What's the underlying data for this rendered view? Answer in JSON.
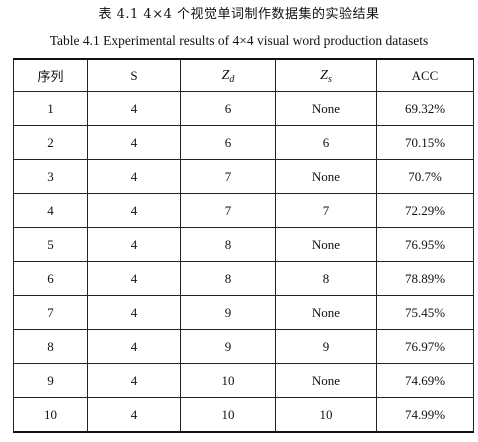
{
  "caption": {
    "cn": "表 4.1 4×4 个视觉单词制作数据集的实验结果",
    "en": "Table 4.1 Experimental results of 4×4 visual word production datasets"
  },
  "table": {
    "headers": {
      "index": "序列",
      "s": "S",
      "zd_base": "Z",
      "zd_sub": "d",
      "zs_base": "Z",
      "zs_sub": "s",
      "acc": "ACC"
    },
    "rows": [
      {
        "index": "1",
        "s": "4",
        "zd": "6",
        "zs": "None",
        "acc": "69.32%"
      },
      {
        "index": "2",
        "s": "4",
        "zd": "6",
        "zs": "6",
        "acc": "70.15%"
      },
      {
        "index": "3",
        "s": "4",
        "zd": "7",
        "zs": "None",
        "acc": "70.7%"
      },
      {
        "index": "4",
        "s": "4",
        "zd": "7",
        "zs": "7",
        "acc": "72.29%"
      },
      {
        "index": "5",
        "s": "4",
        "zd": "8",
        "zs": "None",
        "acc": "76.95%"
      },
      {
        "index": "6",
        "s": "4",
        "zd": "8",
        "zs": "8",
        "acc": "78.89%"
      },
      {
        "index": "7",
        "s": "4",
        "zd": "9",
        "zs": "None",
        "acc": "75.45%"
      },
      {
        "index": "8",
        "s": "4",
        "zd": "9",
        "zs": "9",
        "acc": "76.97%"
      },
      {
        "index": "9",
        "s": "4",
        "zd": "10",
        "zs": "None",
        "acc": "74.69%"
      },
      {
        "index": "10",
        "s": "4",
        "zd": "10",
        "zs": "10",
        "acc": "74.99%"
      }
    ]
  }
}
